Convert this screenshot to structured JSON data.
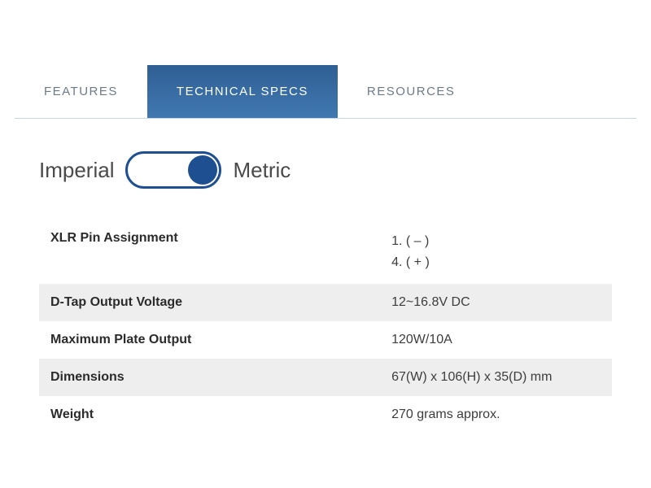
{
  "tabs": {
    "features": "FEATURES",
    "technical_specs": "TECHNICAL SPECS",
    "resources": "RESOURCES"
  },
  "toggle": {
    "imperial_label": "Imperial",
    "metric_label": "Metric",
    "state": "metric"
  },
  "colors": {
    "tab_active_bg_top": "#2f5f94",
    "tab_active_bg_bottom": "#4178b1",
    "tab_active_text": "#ffffff",
    "tab_inactive_text": "#6b7a8a",
    "tab_border": "#c9d6e4",
    "toggle_border": "#1d4f91",
    "toggle_knob": "#1d4f91",
    "row_shaded_bg": "#eeeeee",
    "label_text": "#2b2b2b",
    "value_text": "#3d3d3d"
  },
  "specs": [
    {
      "label": "XLR Pin Assignment",
      "value": "1. ( – )\n4. ( + )",
      "shaded": false
    },
    {
      "label": "D-Tap Output Voltage",
      "value": "12~16.8V DC",
      "shaded": true
    },
    {
      "label": "Maximum Plate Output",
      "value": "120W/10A",
      "shaded": false
    },
    {
      "label": "Dimensions",
      "value": "67(W) x 106(H) x 35(D) mm",
      "shaded": true
    },
    {
      "label": "Weight",
      "value": "270 grams approx.",
      "shaded": false
    }
  ]
}
